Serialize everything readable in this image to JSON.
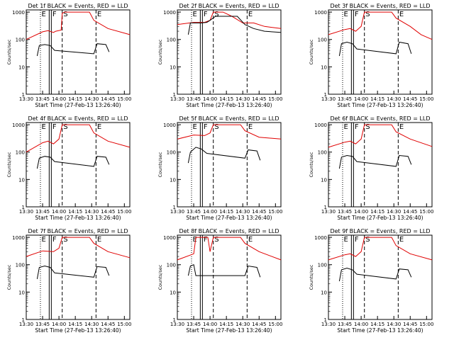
{
  "figure": {
    "series_colors": {
      "events": "#000000",
      "lld": "#e00000"
    },
    "panels": [
      {
        "title": "Det 1f BLACK = Events, RED = LLD",
        "markers": [
          "E",
          "F",
          "S",
          "E"
        ]
      },
      {
        "title": "Det 2f BLACK = Events, RED = LLD",
        "markers": [
          "E",
          "F",
          "S",
          "E"
        ]
      },
      {
        "title": "Det 3f BLACK = Events, RED = LLD",
        "markers": [
          "E",
          "F",
          "S",
          "E"
        ]
      },
      {
        "title": "Det 4f BLACK = Events, RED = LLD",
        "markers": [
          "E",
          "F",
          "S",
          "E"
        ]
      },
      {
        "title": "Det 5f BLACK = Events, RED = LLD",
        "markers": [
          "E",
          "F",
          "S",
          "E"
        ]
      },
      {
        "title": "Det 6f BLACK = Events, RED = LLD",
        "markers": [
          "E",
          "F",
          "S",
          "E"
        ]
      },
      {
        "title": "Det 7f BLACK = Events, RED = LLD",
        "markers": [
          "E",
          "F",
          "S",
          "E"
        ]
      },
      {
        "title": "Det 8f BLACK = Events, RED = LLD",
        "markers": [
          "E",
          "F",
          "S",
          "E"
        ]
      },
      {
        "title": "Det 9f BLACK = Events, RED = LLD",
        "markers": [
          "E",
          "F",
          "S",
          "E"
        ]
      }
    ]
  },
  "chart_data": {
    "type": "line",
    "layout": "3x3 grid",
    "xlabel": "Start Time (27-Feb-13 13:26:40)",
    "ylabel": "Counts/sec",
    "yscale": "log",
    "ylim": [
      1,
      1200
    ],
    "y_tick_labels": [
      "1",
      "10",
      "100",
      "1000"
    ],
    "xlim": [
      "13:30",
      "15:05"
    ],
    "x_tick_labels": [
      "13:30",
      "13:45",
      "14:00",
      "14:15",
      "14:30",
      "14:45",
      "15:00"
    ],
    "series": [
      {
        "name": "Events",
        "color": "black"
      },
      {
        "name": "LLD",
        "color": "red"
      }
    ],
    "vertical_markers": [
      {
        "label": "E",
        "time": "13:43",
        "style": "dotted"
      },
      {
        "label": "F",
        "time": "13:53",
        "style": "solid"
      },
      {
        "label": "S",
        "time": "14:03",
        "style": "dashed"
      },
      {
        "label": "E",
        "time": "14:34",
        "style": "dashed"
      }
    ],
    "panels": [
      {
        "title": "Det 1f BLACK = Events, RED = LLD",
        "red": [
          [
            "13:30",
            100
          ],
          [
            "13:45",
            190
          ],
          [
            "13:50",
            210
          ],
          [
            "13:55",
            180
          ],
          [
            "13:57",
            200
          ],
          [
            "14:02",
            220
          ],
          [
            "14:03",
            900
          ],
          [
            "14:05",
            1000
          ],
          [
            "14:28",
            1000
          ],
          [
            "14:32",
            500
          ],
          [
            "14:45",
            250
          ],
          [
            "15:05",
            150
          ]
        ],
        "black": [
          [
            "13:40",
            25
          ],
          [
            "13:42",
            60
          ],
          [
            "13:47",
            65
          ],
          [
            "13:52",
            60
          ],
          [
            "13:56",
            40
          ],
          [
            "14:32",
            30
          ],
          [
            "14:35",
            70
          ],
          [
            "14:43",
            65
          ],
          [
            "14:46",
            35
          ]
        ]
      },
      {
        "title": "Det 2f BLACK = Events, RED = LLD",
        "red": [
          [
            "13:30",
            350
          ],
          [
            "13:45",
            420
          ],
          [
            "13:55",
            420
          ],
          [
            "14:00",
            500
          ],
          [
            "14:03",
            1000
          ],
          [
            "14:12",
            1000
          ],
          [
            "14:20",
            700
          ],
          [
            "14:30",
            400
          ],
          [
            "14:40",
            400
          ],
          [
            "14:50",
            300
          ],
          [
            "15:05",
            250
          ]
        ],
        "black": [
          [
            "13:40",
            150
          ],
          [
            "13:42",
            400
          ],
          [
            "13:52",
            400
          ],
          [
            "13:57",
            420
          ],
          [
            "14:00",
            500
          ],
          [
            "14:05",
            700
          ],
          [
            "14:25",
            700
          ],
          [
            "14:32",
            350
          ],
          [
            "14:40",
            250
          ],
          [
            "14:50",
            200
          ],
          [
            "15:05",
            180
          ]
        ]
      },
      {
        "title": "Det 3f BLACK = Events, RED = LLD",
        "red": [
          [
            "13:30",
            150
          ],
          [
            "13:45",
            230
          ],
          [
            "13:50",
            250
          ],
          [
            "13:55",
            200
          ],
          [
            "14:00",
            300
          ],
          [
            "14:03",
            1000
          ],
          [
            "14:28",
            1000
          ],
          [
            "14:32",
            600
          ],
          [
            "14:45",
            300
          ],
          [
            "14:55",
            150
          ],
          [
            "15:05",
            100
          ]
        ],
        "black": [
          [
            "13:40",
            25
          ],
          [
            "13:42",
            70
          ],
          [
            "13:47",
            80
          ],
          [
            "13:52",
            70
          ],
          [
            "13:56",
            45
          ],
          [
            "14:32",
            30
          ],
          [
            "14:35",
            80
          ],
          [
            "14:43",
            70
          ],
          [
            "14:46",
            30
          ]
        ]
      },
      {
        "title": "Det 4f BLACK = Events, RED = LLD",
        "red": [
          [
            "13:30",
            100
          ],
          [
            "13:45",
            220
          ],
          [
            "13:50",
            250
          ],
          [
            "13:55",
            200
          ],
          [
            "14:00",
            300
          ],
          [
            "14:03",
            1000
          ],
          [
            "14:28",
            1000
          ],
          [
            "14:32",
            500
          ],
          [
            "14:45",
            250
          ],
          [
            "15:05",
            150
          ]
        ],
        "black": [
          [
            "13:40",
            25
          ],
          [
            "13:42",
            60
          ],
          [
            "13:47",
            70
          ],
          [
            "13:52",
            65
          ],
          [
            "13:56",
            45
          ],
          [
            "14:32",
            30
          ],
          [
            "14:35",
            70
          ],
          [
            "14:43",
            65
          ],
          [
            "14:46",
            35
          ]
        ]
      },
      {
        "title": "Det 5f BLACK = Events, RED = LLD",
        "red": [
          [
            "13:30",
            300
          ],
          [
            "13:45",
            420
          ],
          [
            "13:55",
            400
          ],
          [
            "14:00",
            500
          ],
          [
            "14:03",
            1000
          ],
          [
            "14:28",
            1000
          ],
          [
            "14:32",
            600
          ],
          [
            "14:45",
            350
          ],
          [
            "15:05",
            300
          ]
        ],
        "black": [
          [
            "13:40",
            40
          ],
          [
            "13:42",
            100
          ],
          [
            "13:47",
            150
          ],
          [
            "13:52",
            130
          ],
          [
            "13:57",
            90
          ],
          [
            "14:32",
            60
          ],
          [
            "14:35",
            120
          ],
          [
            "14:43",
            110
          ],
          [
            "14:46",
            50
          ]
        ]
      },
      {
        "title": "Det 6f BLACK = Events, RED = LLD",
        "red": [
          [
            "13:30",
            150
          ],
          [
            "13:45",
            230
          ],
          [
            "13:50",
            250
          ],
          [
            "13:55",
            200
          ],
          [
            "14:00",
            300
          ],
          [
            "14:03",
            1000
          ],
          [
            "14:28",
            1000
          ],
          [
            "14:32",
            550
          ],
          [
            "14:45",
            300
          ],
          [
            "15:05",
            160
          ]
        ],
        "black": [
          [
            "13:40",
            25
          ],
          [
            "13:42",
            65
          ],
          [
            "13:47",
            75
          ],
          [
            "13:52",
            70
          ],
          [
            "13:56",
            45
          ],
          [
            "14:32",
            30
          ],
          [
            "14:35",
            75
          ],
          [
            "14:43",
            70
          ],
          [
            "14:46",
            35
          ]
        ]
      },
      {
        "title": "Det 7f BLACK = Events, RED = LLD",
        "red": [
          [
            "13:30",
            200
          ],
          [
            "13:45",
            320
          ],
          [
            "13:55",
            300
          ],
          [
            "14:00",
            400
          ],
          [
            "14:03",
            1000
          ],
          [
            "14:28",
            1000
          ],
          [
            "14:32",
            600
          ],
          [
            "14:45",
            300
          ],
          [
            "15:05",
            180
          ]
        ],
        "black": [
          [
            "13:40",
            30
          ],
          [
            "13:42",
            80
          ],
          [
            "13:47",
            90
          ],
          [
            "13:52",
            80
          ],
          [
            "13:56",
            50
          ],
          [
            "14:32",
            35
          ],
          [
            "14:35",
            85
          ],
          [
            "14:43",
            80
          ],
          [
            "14:46",
            40
          ]
        ]
      },
      {
        "title": "Det 8f BLACK = Events, RED = LLD",
        "red": [
          [
            "13:30",
            150
          ],
          [
            "13:45",
            250
          ],
          [
            "13:47",
            1000
          ],
          [
            "13:58",
            1000
          ],
          [
            "14:00",
            300
          ],
          [
            "14:03",
            1000
          ],
          [
            "14:28",
            1000
          ],
          [
            "14:32",
            600
          ],
          [
            "14:45",
            300
          ],
          [
            "15:05",
            150
          ]
        ],
        "black": [
          [
            "13:40",
            40
          ],
          [
            "13:42",
            90
          ],
          [
            "13:45",
            100
          ],
          [
            "13:47",
            40
          ],
          [
            "14:32",
            40
          ],
          [
            "14:35",
            90
          ],
          [
            "14:43",
            80
          ],
          [
            "14:46",
            35
          ]
        ]
      },
      {
        "title": "Det 9f BLACK = Events, RED = LLD",
        "red": [
          [
            "13:30",
            150
          ],
          [
            "13:45",
            230
          ],
          [
            "13:50",
            250
          ],
          [
            "13:55",
            200
          ],
          [
            "14:00",
            300
          ],
          [
            "14:03",
            1000
          ],
          [
            "14:28",
            1000
          ],
          [
            "14:32",
            500
          ],
          [
            "14:45",
            250
          ],
          [
            "15:05",
            150
          ]
        ],
        "black": [
          [
            "13:40",
            25
          ],
          [
            "13:42",
            65
          ],
          [
            "13:47",
            75
          ],
          [
            "13:52",
            65
          ],
          [
            "13:56",
            45
          ],
          [
            "14:32",
            30
          ],
          [
            "14:35",
            70
          ],
          [
            "14:43",
            65
          ],
          [
            "14:46",
            35
          ]
        ]
      }
    ]
  }
}
